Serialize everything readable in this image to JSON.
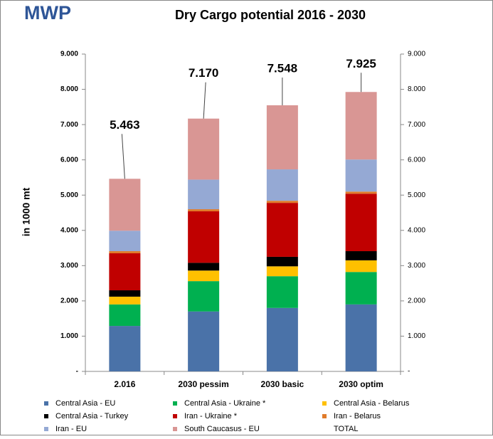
{
  "logo": "MWP",
  "chart_data": {
    "type": "stacked_bar",
    "title": "Dry Cargo potential 2016 - 2030",
    "y_label": "in 1000 mt",
    "categories": [
      "2.016",
      "2030 pessim",
      "2030 basic",
      "2030 optim"
    ],
    "series": [
      {
        "name": "Central Asia - EU",
        "color": "#4a72a8",
        "values": [
          1290,
          1700,
          1800,
          1900
        ]
      },
      {
        "name": "Central Asia - Ukraine *",
        "color": "#00b050",
        "values": [
          610,
          860,
          900,
          920
        ]
      },
      {
        "name": "Central Asia - Belarus",
        "color": "#ffc000",
        "values": [
          220,
          300,
          280,
          330
        ]
      },
      {
        "name": "Central Asia - Turkey",
        "color": "#000000",
        "values": [
          180,
          220,
          270,
          260
        ]
      },
      {
        "name": "Iran - Ukraine *",
        "color": "#c00000",
        "values": [
          1050,
          1460,
          1530,
          1630
        ]
      },
      {
        "name": "Iran - Belarus",
        "color": "#e07b2a",
        "values": [
          60,
          60,
          60,
          60
        ]
      },
      {
        "name": "Iran - EU",
        "color": "#95a9d4",
        "values": [
          580,
          840,
          890,
          910
        ]
      },
      {
        "name": "South Caucasus - EU",
        "color": "#d99694",
        "values": [
          1473,
          1730,
          1818,
          1915
        ]
      },
      {
        "name": "TOTAL",
        "total": true,
        "values": [
          5463,
          7170,
          7548,
          7925
        ],
        "value_labels": [
          "5.463",
          "7.170",
          "7.548",
          "7.925"
        ]
      }
    ],
    "ylim": [
      0,
      9000
    ],
    "yticks": [
      {
        "value": 0,
        "label": "-"
      },
      {
        "value": 1000,
        "label": "1.000"
      },
      {
        "value": 2000,
        "label": "2.000"
      },
      {
        "value": 3000,
        "label": "3.000"
      },
      {
        "value": 4000,
        "label": "4.000"
      },
      {
        "value": 5000,
        "label": "5.000"
      },
      {
        "value": 6000,
        "label": "6.000"
      },
      {
        "value": 7000,
        "label": "7.000"
      },
      {
        "value": 8000,
        "label": "8.000"
      },
      {
        "value": 9000,
        "label": "9.000"
      }
    ],
    "secondary_axis": true,
    "grid": false,
    "legend": "bottom"
  }
}
